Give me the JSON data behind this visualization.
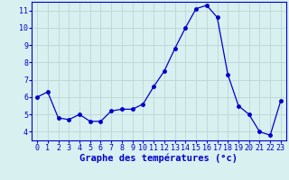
{
  "hours": [
    0,
    1,
    2,
    3,
    4,
    5,
    6,
    7,
    8,
    9,
    10,
    11,
    12,
    13,
    14,
    15,
    16,
    17,
    18,
    19,
    20,
    21,
    22,
    23
  ],
  "temps": [
    6.0,
    6.3,
    4.8,
    4.7,
    5.0,
    4.6,
    4.6,
    5.2,
    5.3,
    5.3,
    5.6,
    6.6,
    7.5,
    8.8,
    10.0,
    11.1,
    11.3,
    10.6,
    7.3,
    5.5,
    5.0,
    4.0,
    3.8,
    5.8
  ],
  "line_color": "#0000cc",
  "bg_color": "#d8f0f0",
  "grid_color": "#b8d0d0",
  "xlabel": "Graphe des températures (°c)",
  "xlabel_color": "#0000cc",
  "xlim": [
    -0.5,
    23.5
  ],
  "ylim": [
    3.5,
    11.5
  ],
  "yticks": [
    4,
    5,
    6,
    7,
    8,
    9,
    10,
    11
  ],
  "xticks": [
    0,
    1,
    2,
    3,
    4,
    5,
    6,
    7,
    8,
    9,
    10,
    11,
    12,
    13,
    14,
    15,
    16,
    17,
    18,
    19,
    20,
    21,
    22,
    23
  ],
  "tick_label_fontsize": 6.0,
  "xlabel_fontsize": 7.5,
  "marker_size": 2.5,
  "line_width": 0.9
}
